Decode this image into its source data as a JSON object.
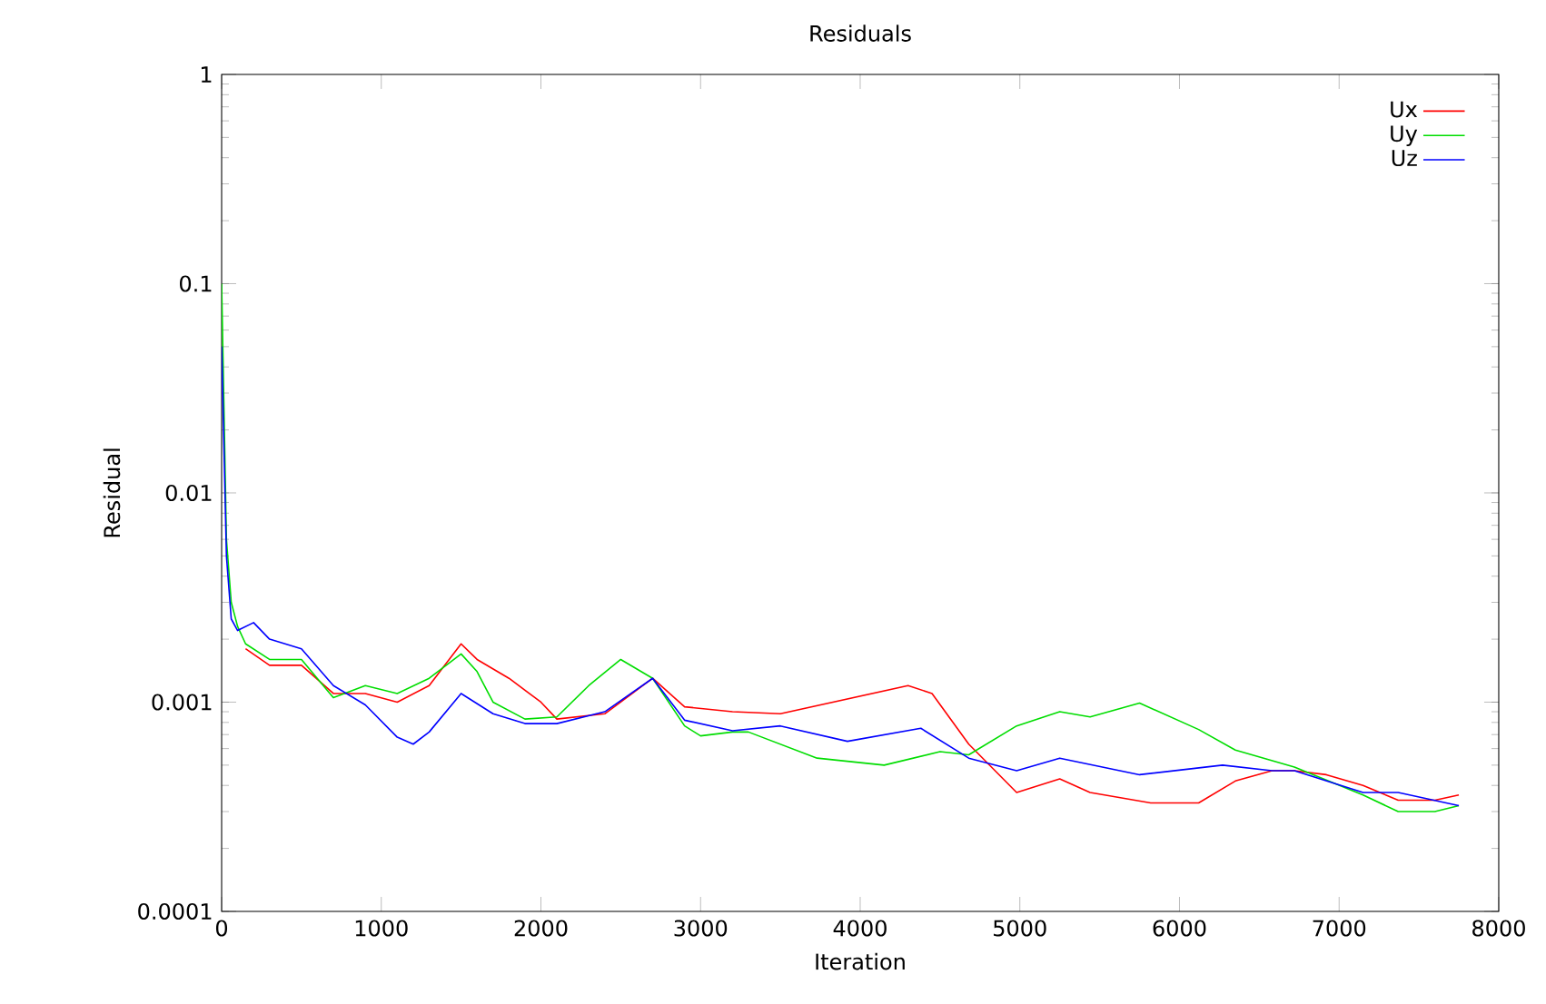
{
  "chart_data": {
    "type": "line",
    "title": "Residuals",
    "xlabel": "Iteration",
    "ylabel": "Residual",
    "log": true,
    "grid": false,
    "legend": "top right",
    "marker": "none",
    "line_style": "solid",
    "xlim": [
      0,
      8000
    ],
    "xticks": [
      0,
      1000,
      2000,
      3000,
      4000,
      5000,
      6000,
      7000,
      8000
    ],
    "ylim": [
      0.0001,
      1
    ],
    "yticks": [
      0.0001,
      0.001,
      0.01,
      0.1,
      1
    ],
    "series": [
      {
        "name": "Ux",
        "color": "#ff0000",
        "x": [
          150,
          300,
          500,
          700,
          900,
          1100,
          1300,
          1500,
          1600,
          1800,
          2000,
          2100,
          2400,
          2700,
          2900,
          3200,
          3500,
          4300,
          4450,
          4680,
          4980,
          5250,
          5440,
          5820,
          6120,
          6350,
          6580,
          6720,
          6920,
          7150,
          7370,
          7600,
          7750
        ],
        "values": [
          0.0018,
          0.0015,
          0.0015,
          0.0011,
          0.0011,
          0.001,
          0.0012,
          0.0019,
          0.0016,
          0.0013,
          0.001,
          0.00083,
          0.00088,
          0.0013,
          0.00095,
          0.0009,
          0.00088,
          0.0012,
          0.0011,
          0.00063,
          0.00037,
          0.00043,
          0.00037,
          0.00033,
          0.00033,
          0.00042,
          0.00047,
          0.00047,
          0.00045,
          0.0004,
          0.00034,
          0.00034,
          0.00036
        ]
      },
      {
        "name": "Uy",
        "color": "#00dd00",
        "x": [
          0,
          30,
          60,
          100,
          150,
          300,
          500,
          700,
          900,
          1100,
          1300,
          1500,
          1600,
          1700,
          1900,
          2100,
          2300,
          2500,
          2700,
          2900,
          3000,
          3200,
          3300,
          3730,
          4150,
          4500,
          4680,
          4980,
          5250,
          5440,
          5750,
          6120,
          6350,
          6720,
          7150,
          7370,
          7600,
          7750
        ],
        "values": [
          0.1,
          0.006,
          0.003,
          0.0023,
          0.0019,
          0.0016,
          0.0016,
          0.00105,
          0.0012,
          0.0011,
          0.0013,
          0.0017,
          0.0014,
          0.001,
          0.00083,
          0.00085,
          0.0012,
          0.0016,
          0.0013,
          0.00077,
          0.00069,
          0.00072,
          0.00072,
          0.00054,
          0.0005,
          0.00058,
          0.00056,
          0.00077,
          0.0009,
          0.00085,
          0.00099,
          0.00074,
          0.00059,
          0.00049,
          0.00036,
          0.0003,
          0.0003,
          0.00032
        ]
      },
      {
        "name": "Uz",
        "color": "#0000ff",
        "x": [
          0,
          30,
          60,
          100,
          200,
          300,
          500,
          700,
          900,
          1100,
          1200,
          1300,
          1500,
          1700,
          1900,
          2100,
          2400,
          2700,
          2900,
          3200,
          3500,
          3920,
          4380,
          4680,
          4980,
          5250,
          5750,
          6270,
          6580,
          6720,
          7150,
          7370,
          7750
        ],
        "values": [
          0.05,
          0.005,
          0.0025,
          0.0022,
          0.0024,
          0.002,
          0.0018,
          0.0012,
          0.00097,
          0.00068,
          0.00063,
          0.00072,
          0.0011,
          0.00088,
          0.00079,
          0.00079,
          0.0009,
          0.0013,
          0.00082,
          0.00073,
          0.00077,
          0.00065,
          0.00075,
          0.00054,
          0.00047,
          0.00054,
          0.00045,
          0.0005,
          0.00047,
          0.00047,
          0.00037,
          0.00037,
          0.00032
        ]
      }
    ]
  }
}
